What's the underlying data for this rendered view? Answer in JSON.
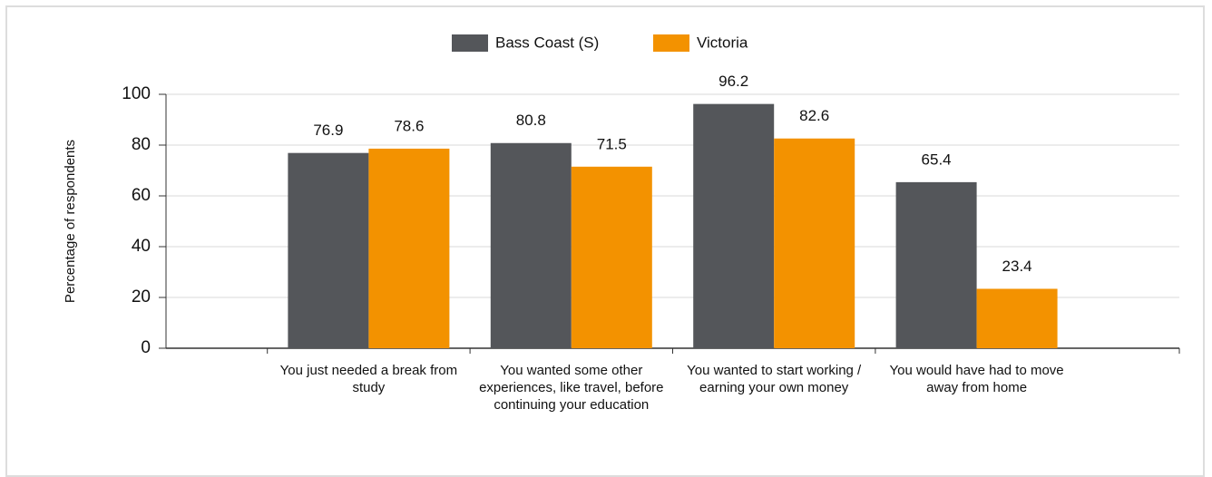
{
  "chart_data": {
    "type": "bar",
    "y_label": "Percentage of respondents",
    "categories": [
      "You just needed a break from study",
      "You wanted some other experiences, like travel, before continuing your education",
      "You wanted to start working / earning your own money",
      "You would have had to move away from home"
    ],
    "series": [
      {
        "name": "Bass Coast (S)",
        "color": "#54565a",
        "values": [
          76.9,
          80.8,
          96.2,
          65.4
        ]
      },
      {
        "name": "Victoria",
        "color": "#f39200",
        "values": [
          78.6,
          71.5,
          82.6,
          23.4
        ]
      }
    ],
    "ylim": [
      0,
      100
    ],
    "yticks": [
      0,
      20,
      40,
      60,
      80,
      100
    ],
    "grid": true,
    "legend": "top"
  }
}
